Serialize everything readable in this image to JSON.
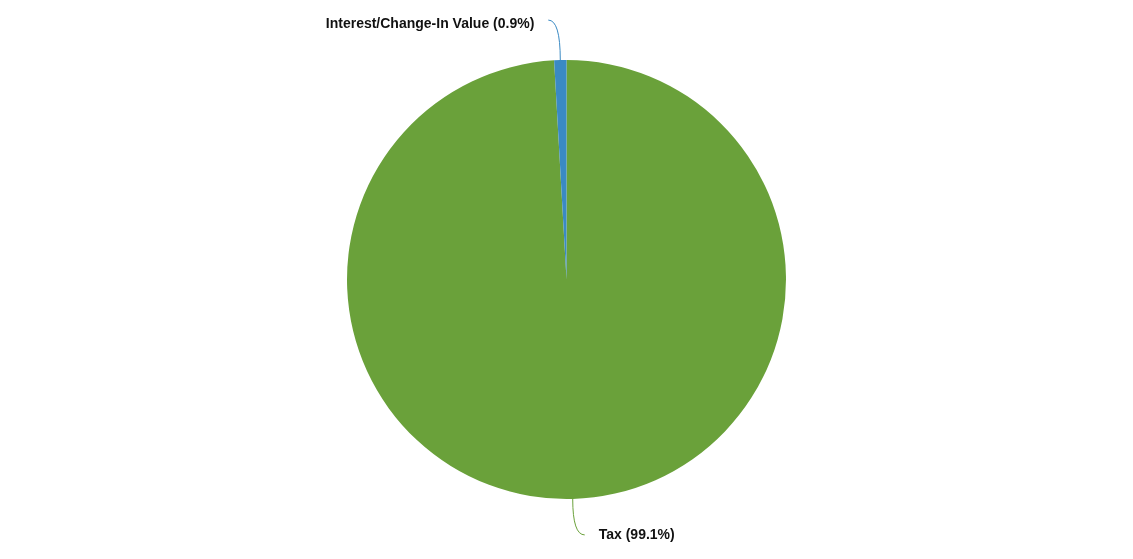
{
  "chart_data": {
    "type": "pie",
    "categories": [
      "Tax",
      "Interest/Change-In Value"
    ],
    "values": [
      99.1,
      0.9
    ],
    "value_labels": [
      "(99.1%)",
      "(0.9%)"
    ],
    "colors": [
      "#6aa13a",
      "#3a8ac4"
    ],
    "legend": false
  }
}
